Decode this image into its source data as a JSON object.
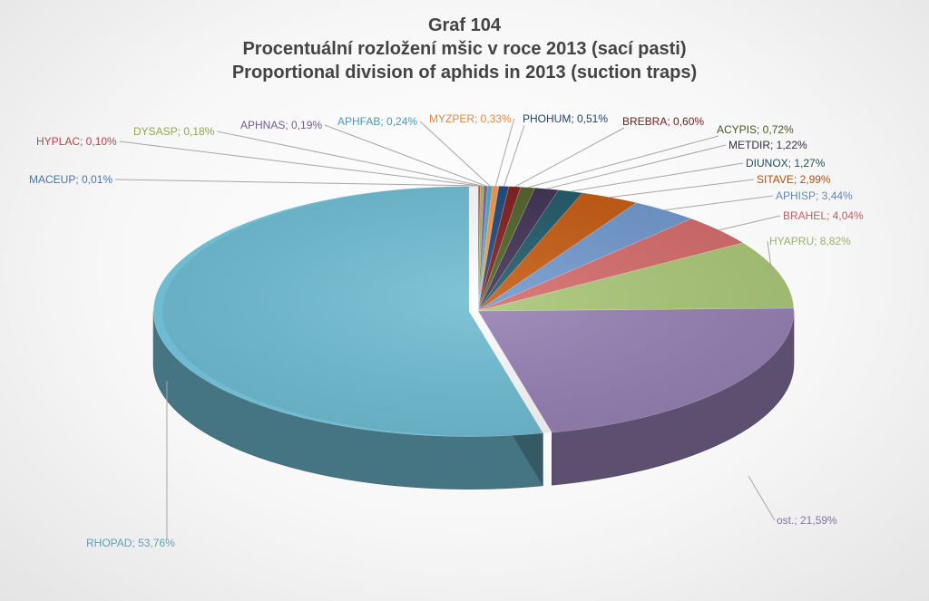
{
  "chart_data": {
    "type": "pie",
    "style": "3d-exploded",
    "title_lines": [
      "Graf 104",
      "Procentuální rozložení mšic v roce 2013 (sací pasti)",
      "Proportional division of aphids in 2013 (suction traps)"
    ],
    "label_format": "{name}; {value}",
    "slices": [
      {
        "name": "MACEUP",
        "value": 0.01,
        "display": "0,01%",
        "color": "#4f81bd"
      },
      {
        "name": "HYPLAC",
        "value": 0.1,
        "display": "0,10%",
        "color": "#c0504d"
      },
      {
        "name": "DYSASP",
        "value": 0.18,
        "display": "0,18%",
        "color": "#9bbb59"
      },
      {
        "name": "APHNAS",
        "value": 0.19,
        "display": "0,19%",
        "color": "#8064a2"
      },
      {
        "name": "APHFAB",
        "value": 0.24,
        "display": "0,24%",
        "color": "#4bacc6"
      },
      {
        "name": "MYZPER",
        "value": 0.33,
        "display": "0,33%",
        "color": "#f79646"
      },
      {
        "name": "PHOHUM",
        "value": 0.51,
        "display": "0,51%",
        "color": "#1f497d"
      },
      {
        "name": "BREBRA",
        "value": 0.6,
        "display": "0,60%",
        "color": "#7f1f1f"
      },
      {
        "name": "ACYPIS",
        "value": 0.72,
        "display": "0,72%",
        "color": "#4f6228"
      },
      {
        "name": "METDIR",
        "value": 1.22,
        "display": "1,22%",
        "color": "#403152"
      },
      {
        "name": "DIUNOX",
        "value": 1.27,
        "display": "1,27%",
        "color": "#215968"
      },
      {
        "name": "SITAVE",
        "value": 2.99,
        "display": "2,99%",
        "color": "#c55a11"
      },
      {
        "name": "APHISP",
        "value": 3.44,
        "display": "3,44%",
        "color": "#6f97cc"
      },
      {
        "name": "BRAHEL",
        "value": 4.04,
        "display": "4,04%",
        "color": "#d46a6a"
      },
      {
        "name": "HYAPRU",
        "value": 8.82,
        "display": "8,82%",
        "color": "#a9c676"
      },
      {
        "name": "ost.",
        "value": 21.59,
        "display": "21,59%",
        "color": "#9680b3"
      },
      {
        "name": "RHOPAD",
        "value": 53.76,
        "display": "53,76%",
        "color": "#6fbcd2"
      }
    ]
  }
}
